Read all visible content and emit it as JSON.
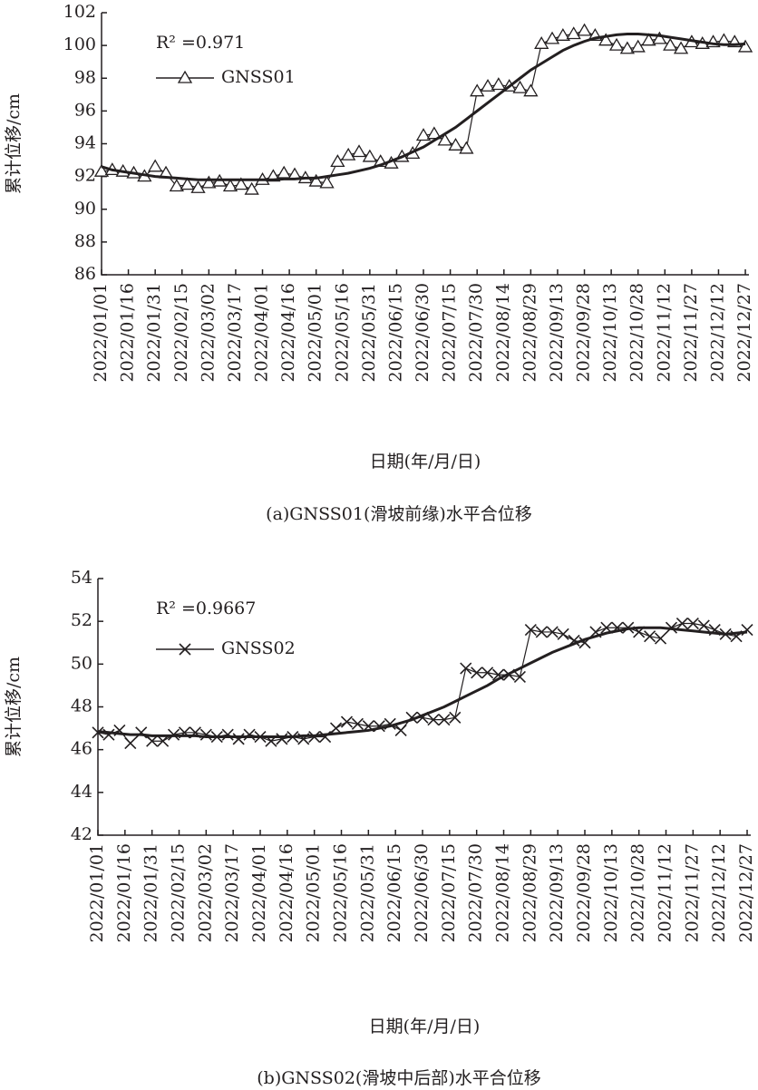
{
  "chart_data": [
    {
      "type": "line",
      "ylabel": "累计位移/cm",
      "xlabel": "日期(年/月/日)",
      "caption": "(a)GNSS01(滑坡前缘)水平合位移",
      "annotation": "R² =0.971",
      "xlim": [
        "2022/01/01",
        "2022/12/29"
      ],
      "ylim": [
        86,
        102
      ],
      "yticks": [
        86,
        88,
        90,
        92,
        94,
        96,
        98,
        100,
        102
      ],
      "xticks": [
        "2022/01/01",
        "2022/01/16",
        "2022/01/31",
        "2022/02/15",
        "2022/03/02",
        "2022/03/17",
        "2022/04/01",
        "2022/04/16",
        "2022/05/01",
        "2022/05/16",
        "2022/05/31",
        "2022/06/15",
        "2022/06/30",
        "2022/07/15",
        "2022/07/30",
        "2022/08/14",
        "2022/08/29",
        "2022/09/13",
        "2022/09/28",
        "2022/10/13",
        "2022/10/28",
        "2022/11/12",
        "2022/11/27",
        "2022/12/12",
        "2022/12/27"
      ],
      "x": [
        "2022/01/01",
        "2022/01/07",
        "2022/01/13",
        "2022/01/19",
        "2022/01/25",
        "2022/01/31",
        "2022/02/06",
        "2022/02/12",
        "2022/02/18",
        "2022/02/24",
        "2022/03/02",
        "2022/03/08",
        "2022/03/14",
        "2022/03/20",
        "2022/03/26",
        "2022/04/01",
        "2022/04/07",
        "2022/04/13",
        "2022/04/19",
        "2022/04/25",
        "2022/05/01",
        "2022/05/07",
        "2022/05/13",
        "2022/05/19",
        "2022/05/25",
        "2022/05/31",
        "2022/06/06",
        "2022/06/12",
        "2022/06/18",
        "2022/06/24",
        "2022/06/30",
        "2022/07/06",
        "2022/07/12",
        "2022/07/18",
        "2022/07/24",
        "2022/07/30",
        "2022/08/05",
        "2022/08/11",
        "2022/08/17",
        "2022/08/23",
        "2022/08/29",
        "2022/09/04",
        "2022/09/10",
        "2022/09/16",
        "2022/09/22",
        "2022/09/28",
        "2022/10/04",
        "2022/10/10",
        "2022/10/16",
        "2022/10/22",
        "2022/10/28",
        "2022/11/03",
        "2022/11/09",
        "2022/11/15",
        "2022/11/21",
        "2022/11/27",
        "2022/12/03",
        "2022/12/09",
        "2022/12/15",
        "2022/12/21",
        "2022/12/27"
      ],
      "series": [
        {
          "name": "GNSS01",
          "color": "#231f20",
          "marker": "triangle",
          "values": [
            92.3,
            92.4,
            92.3,
            92.2,
            92.0,
            92.6,
            92.2,
            91.4,
            91.5,
            91.3,
            91.6,
            91.7,
            91.4,
            91.5,
            91.2,
            91.8,
            92.0,
            92.2,
            92.1,
            91.9,
            91.7,
            91.6,
            92.9,
            93.3,
            93.5,
            93.2,
            92.9,
            92.8,
            93.2,
            93.4,
            94.5,
            94.6,
            94.2,
            93.9,
            93.7,
            97.2,
            97.5,
            97.6,
            97.5,
            97.4,
            97.2,
            100.1,
            100.4,
            100.6,
            100.7,
            100.9,
            100.6,
            100.3,
            100.0,
            99.8,
            99.9,
            100.3,
            100.4,
            100.0,
            99.8,
            100.2,
            100.1,
            100.2,
            100.3,
            100.2,
            99.9
          ]
        },
        {
          "color": "#231f20",
          "values": [
            92.6,
            92.4,
            92.3,
            92.2,
            92.1,
            92.0,
            91.95,
            91.9,
            91.85,
            91.8,
            91.8,
            91.8,
            91.8,
            91.8,
            91.8,
            91.8,
            91.8,
            91.85,
            91.85,
            91.9,
            91.9,
            92.0,
            92.1,
            92.2,
            92.35,
            92.5,
            92.7,
            92.95,
            93.2,
            93.5,
            93.8,
            94.2,
            94.6,
            95.0,
            95.5,
            96.0,
            96.5,
            97.0,
            97.5,
            98.0,
            98.5,
            98.9,
            99.3,
            99.7,
            100.0,
            100.25,
            100.45,
            100.55,
            100.65,
            100.7,
            100.7,
            100.65,
            100.6,
            100.5,
            100.4,
            100.3,
            100.2,
            100.1,
            100.05,
            100.05,
            100.1
          ]
        }
      ]
    },
    {
      "type": "line",
      "ylabel": "累计位移/cm",
      "xlabel": "日期(年/月/日)",
      "caption": "(b)GNSS02(滑坡中后部)水平合位移",
      "annotation": "R² =0.9667",
      "xlim": [
        "2022/01/01",
        "2022/12/29"
      ],
      "ylim": [
        42,
        54
      ],
      "yticks": [
        42,
        44,
        46,
        48,
        50,
        52,
        54
      ],
      "xticks": [
        "2022/01/01",
        "2022/01/16",
        "2022/01/31",
        "2022/02/15",
        "2022/03/02",
        "2022/03/17",
        "2022/04/01",
        "2022/04/16",
        "2022/05/01",
        "2022/05/16",
        "2022/05/31",
        "2022/06/15",
        "2022/06/30",
        "2022/07/15",
        "2022/07/30",
        "2022/08/14",
        "2022/08/29",
        "2022/09/13",
        "2022/09/28",
        "2022/10/13",
        "2022/10/28",
        "2022/11/12",
        "2022/11/27",
        "2022/12/12",
        "2022/12/27"
      ],
      "x": [
        "2022/01/01",
        "2022/01/07",
        "2022/01/13",
        "2022/01/19",
        "2022/01/25",
        "2022/01/31",
        "2022/02/06",
        "2022/02/12",
        "2022/02/18",
        "2022/02/24",
        "2022/03/02",
        "2022/03/08",
        "2022/03/14",
        "2022/03/20",
        "2022/03/26",
        "2022/04/01",
        "2022/04/07",
        "2022/04/13",
        "2022/04/19",
        "2022/04/25",
        "2022/05/01",
        "2022/05/07",
        "2022/05/13",
        "2022/05/19",
        "2022/05/25",
        "2022/05/31",
        "2022/06/06",
        "2022/06/12",
        "2022/06/18",
        "2022/06/24",
        "2022/06/30",
        "2022/07/06",
        "2022/07/12",
        "2022/07/18",
        "2022/07/24",
        "2022/07/30",
        "2022/08/05",
        "2022/08/11",
        "2022/08/17",
        "2022/08/23",
        "2022/08/29",
        "2022/09/04",
        "2022/09/10",
        "2022/09/16",
        "2022/09/22",
        "2022/09/28",
        "2022/10/04",
        "2022/10/10",
        "2022/10/16",
        "2022/10/22",
        "2022/10/28",
        "2022/11/03",
        "2022/11/09",
        "2022/11/15",
        "2022/11/21",
        "2022/11/27",
        "2022/12/03",
        "2022/12/09",
        "2022/12/15",
        "2022/12/21",
        "2022/12/27"
      ],
      "series": [
        {
          "name": "GNSS02",
          "color": "#231f20",
          "marker": "x",
          "values": [
            46.8,
            46.7,
            46.9,
            46.3,
            46.8,
            46.4,
            46.4,
            46.7,
            46.8,
            46.8,
            46.7,
            46.6,
            46.7,
            46.5,
            46.7,
            46.6,
            46.4,
            46.5,
            46.6,
            46.5,
            46.6,
            46.6,
            47.0,
            47.3,
            47.2,
            47.1,
            47.1,
            47.2,
            46.9,
            47.5,
            47.5,
            47.4,
            47.4,
            47.5,
            49.8,
            49.6,
            49.6,
            49.5,
            49.5,
            49.4,
            51.6,
            51.5,
            51.5,
            51.4,
            51.1,
            51.0,
            51.5,
            51.7,
            51.7,
            51.7,
            51.5,
            51.3,
            51.2,
            51.7,
            51.9,
            51.9,
            51.8,
            51.6,
            51.4,
            51.3,
            51.6
          ]
        },
        {
          "color": "#231f20",
          "values": [
            46.85,
            46.8,
            46.75,
            46.7,
            46.7,
            46.65,
            46.65,
            46.65,
            46.65,
            46.65,
            46.6,
            46.6,
            46.6,
            46.6,
            46.6,
            46.6,
            46.6,
            46.6,
            46.6,
            46.65,
            46.65,
            46.7,
            46.75,
            46.8,
            46.85,
            46.9,
            47.0,
            47.1,
            47.25,
            47.4,
            47.6,
            47.8,
            48.0,
            48.25,
            48.5,
            48.75,
            49.0,
            49.3,
            49.55,
            49.8,
            50.05,
            50.3,
            50.55,
            50.75,
            50.95,
            51.15,
            51.3,
            51.45,
            51.55,
            51.65,
            51.7,
            51.7,
            51.7,
            51.65,
            51.6,
            51.55,
            51.5,
            51.45,
            51.4,
            51.45,
            51.5
          ]
        }
      ]
    }
  ]
}
